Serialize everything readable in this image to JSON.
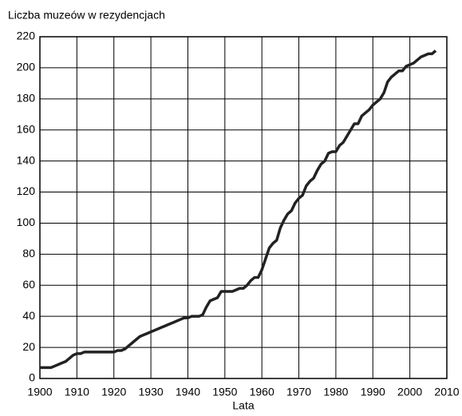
{
  "chart_data": {
    "type": "line",
    "title": "Liczba muzeów w rezydencjach",
    "x_label": "Lata",
    "x": [
      1900,
      1901,
      1902,
      1903,
      1904,
      1905,
      1906,
      1907,
      1908,
      1909,
      1910,
      1911,
      1912,
      1913,
      1914,
      1915,
      1916,
      1917,
      1918,
      1919,
      1920,
      1921,
      1922,
      1923,
      1924,
      1925,
      1926,
      1927,
      1928,
      1929,
      1930,
      1931,
      1932,
      1933,
      1934,
      1935,
      1936,
      1937,
      1938,
      1939,
      1940,
      1941,
      1942,
      1943,
      1944,
      1945,
      1946,
      1947,
      1948,
      1949,
      1950,
      1951,
      1952,
      1953,
      1954,
      1955,
      1956,
      1957,
      1958,
      1959,
      1960,
      1961,
      1962,
      1963,
      1964,
      1965,
      1966,
      1967,
      1968,
      1969,
      1970,
      1971,
      1972,
      1973,
      1974,
      1975,
      1976,
      1977,
      1978,
      1979,
      1980,
      1981,
      1982,
      1983,
      1984,
      1985,
      1986,
      1987,
      1988,
      1989,
      1990,
      1991,
      1992,
      1993,
      1994,
      1995,
      1996,
      1997,
      1998,
      1999,
      2000,
      2001,
      2002,
      2003,
      2004,
      2005,
      2006,
      2007
    ],
    "series": [
      {
        "color": "#222222",
        "values": [
          7,
          7,
          7,
          7,
          8,
          9,
          10,
          11,
          13,
          15,
          16,
          16,
          17,
          17,
          17,
          17,
          17,
          17,
          17,
          17,
          17,
          18,
          18,
          19,
          21,
          23,
          25,
          27,
          28,
          29,
          30,
          31,
          32,
          33,
          34,
          35,
          36,
          37,
          38,
          39,
          39,
          40,
          40,
          40,
          41,
          46,
          50,
          51,
          52,
          56,
          56,
          56,
          56,
          57,
          58,
          58,
          60,
          63,
          65,
          65,
          70,
          77,
          84,
          87,
          89,
          97,
          102,
          106,
          108,
          113,
          116,
          118,
          124,
          127,
          129,
          134,
          138,
          140,
          145,
          146,
          146,
          150,
          152,
          156,
          160,
          164,
          164,
          169,
          171,
          173,
          176,
          178,
          180,
          184,
          191,
          194,
          196,
          198,
          198,
          201,
          202,
          203,
          205,
          207,
          208,
          209,
          209,
          211
        ]
      }
    ],
    "xlim": [
      1900,
      2010
    ],
    "xticks": [
      1900,
      1910,
      1920,
      1930,
      1940,
      1950,
      1960,
      1970,
      1980,
      1990,
      2000,
      2010
    ],
    "ylim": [
      0,
      220
    ],
    "yticks": [
      0,
      20,
      40,
      60,
      80,
      100,
      120,
      140,
      160,
      180,
      200,
      220
    ],
    "grid": true
  }
}
